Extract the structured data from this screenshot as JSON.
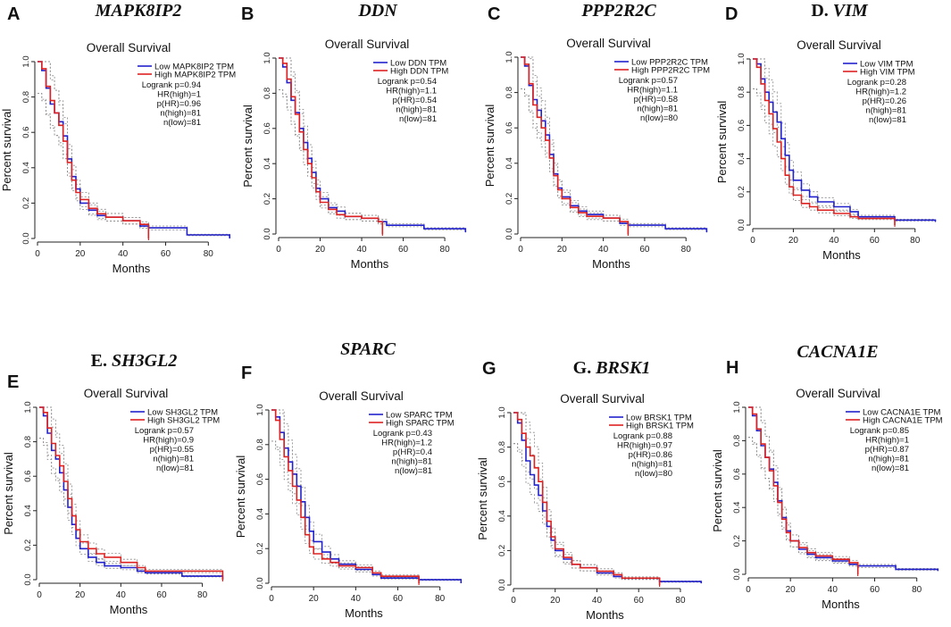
{
  "figure": {
    "plot_title": "Overall Survival",
    "xlabel": "Months",
    "ylabel": "Percent survival",
    "legend_position": "top-right",
    "colors": {
      "low": "#2222cc",
      "high": "#dd2222",
      "ci": "#888888",
      "axis": "#222222"
    }
  },
  "chart_data": [
    {
      "type": "line",
      "panel_label": "A",
      "gene_prefix": "",
      "gene": "MAPK8IP2",
      "title": "Overall Survival",
      "xlabel": "Months",
      "ylabel": "Percent survival",
      "xlim": [
        0,
        92
      ],
      "ylim": [
        0,
        1.0
      ],
      "xticks": [
        "0",
        "20",
        "40",
        "60",
        "80"
      ],
      "yticks": [
        "0.0",
        "0.2",
        "0.4",
        "0.6",
        "0.8",
        "1.0"
      ],
      "legend": [
        "Low MAPK8IP2 TPM",
        "High MAPK8IP2 TPM"
      ],
      "stats": [
        "Logrank p=0.94",
        "HR(high)=1",
        "p(HR)=0.96",
        "n(high)=81",
        "n(low)=81"
      ],
      "series": [
        {
          "name": "Low MAPK8IP2 TPM",
          "x": [
            0,
            2,
            4,
            6,
            8,
            10,
            12,
            14,
            16,
            18,
            20,
            24,
            28,
            32,
            40,
            48,
            52,
            70,
            90
          ],
          "y": [
            1,
            0.95,
            0.85,
            0.76,
            0.71,
            0.66,
            0.58,
            0.45,
            0.35,
            0.28,
            0.2,
            0.16,
            0.13,
            0.12,
            0.1,
            0.07,
            0.06,
            0.02,
            0
          ]
        },
        {
          "name": "High MAPK8IP2 TPM",
          "x": [
            0,
            2,
            4,
            6,
            8,
            10,
            12,
            14,
            16,
            18,
            20,
            24,
            28,
            32,
            40,
            48,
            52
          ],
          "y": [
            1,
            0.96,
            0.86,
            0.78,
            0.71,
            0.64,
            0.55,
            0.43,
            0.33,
            0.26,
            0.22,
            0.17,
            0.14,
            0.12,
            0.1,
            0.08,
            0
          ]
        }
      ]
    },
    {
      "type": "line",
      "panel_label": "B",
      "gene_prefix": "",
      "gene": "DDN",
      "title": "Overall Survival",
      "xlabel": "Months",
      "ylabel": "Percent survival",
      "xlim": [
        0,
        92
      ],
      "ylim": [
        0,
        1.0
      ],
      "xticks": [
        "0",
        "20",
        "40",
        "60",
        "80"
      ],
      "yticks": [
        "0.0",
        "0.2",
        "0.4",
        "0.6",
        "0.8",
        "1.0"
      ],
      "legend": [
        "Low DDN TPM",
        "High DDN TPM"
      ],
      "stats": [
        "Logrank p=0.54",
        "HR(high)=1.1",
        "p(HR)=0.54",
        "n(high)=81",
        "n(low)=81"
      ],
      "series": [
        {
          "name": "Low DDN TPM",
          "x": [
            0,
            2,
            4,
            6,
            8,
            10,
            12,
            14,
            16,
            18,
            20,
            24,
            28,
            32,
            40,
            48,
            52,
            70,
            90
          ],
          "y": [
            1,
            0.95,
            0.86,
            0.76,
            0.69,
            0.6,
            0.52,
            0.43,
            0.35,
            0.26,
            0.2,
            0.15,
            0.13,
            0.1,
            0.09,
            0.07,
            0.05,
            0.03,
            0.01
          ]
        },
        {
          "name": "High DDN TPM",
          "x": [
            0,
            2,
            4,
            6,
            8,
            10,
            12,
            14,
            16,
            18,
            20,
            24,
            28,
            32,
            40,
            48,
            50
          ],
          "y": [
            1,
            0.97,
            0.88,
            0.78,
            0.68,
            0.58,
            0.48,
            0.4,
            0.32,
            0.24,
            0.18,
            0.14,
            0.11,
            0.1,
            0.09,
            0.07,
            0
          ]
        }
      ]
    },
    {
      "type": "line",
      "panel_label": "C",
      "gene_prefix": "",
      "gene": "PPP2R2C",
      "title": "Overall Survival",
      "xlabel": "Months",
      "ylabel": "Percent survival",
      "xlim": [
        0,
        92
      ],
      "ylim": [
        0,
        1.0
      ],
      "xticks": [
        "0",
        "20",
        "40",
        "60",
        "80"
      ],
      "yticks": [
        "0.0",
        "0.2",
        "0.4",
        "0.6",
        "0.8",
        "1.0"
      ],
      "legend": [
        "Low PPP2R2C TPM",
        "High PPP2R2C TPM"
      ],
      "stats": [
        "Logrank p=0.57",
        "HR(high)=1.1",
        "p(HR)=0.58",
        "n(high)=81",
        "n(low)=80"
      ],
      "series": [
        {
          "name": "Low PPP2R2C TPM",
          "x": [
            0,
            2,
            4,
            6,
            8,
            10,
            12,
            14,
            16,
            18,
            20,
            24,
            28,
            32,
            40,
            48,
            52,
            70,
            90
          ],
          "y": [
            1,
            0.95,
            0.84,
            0.76,
            0.7,
            0.64,
            0.56,
            0.45,
            0.34,
            0.26,
            0.21,
            0.16,
            0.13,
            0.11,
            0.09,
            0.06,
            0.05,
            0.03,
            0.01
          ]
        },
        {
          "name": "High PPP2R2C TPM",
          "x": [
            0,
            2,
            4,
            6,
            8,
            10,
            12,
            14,
            16,
            18,
            20,
            24,
            28,
            32,
            40,
            48,
            52
          ],
          "y": [
            1,
            0.96,
            0.85,
            0.73,
            0.66,
            0.6,
            0.53,
            0.43,
            0.33,
            0.25,
            0.2,
            0.15,
            0.12,
            0.1,
            0.09,
            0.07,
            0
          ]
        }
      ]
    },
    {
      "type": "line",
      "panel_label": "D",
      "gene_prefix": "D. ",
      "gene": "VIM",
      "title": "Overall Survival",
      "xlabel": "Months",
      "ylabel": "Percent survival",
      "xlim": [
        0,
        92
      ],
      "ylim": [
        0,
        1.0
      ],
      "xticks": [
        "0",
        "20",
        "40",
        "60",
        "80"
      ],
      "yticks": [
        "0.0",
        "0.2",
        "0.4",
        "0.6",
        "0.8",
        "1.0"
      ],
      "legend": [
        "Low VIM TPM",
        "High VIM TPM"
      ],
      "stats": [
        "Logrank p=0.28",
        "HR(high)=1.2",
        "p(HR)=0.26",
        "n(high)=81",
        "n(low)=81"
      ],
      "series": [
        {
          "name": "Low VIM TPM",
          "x": [
            0,
            2,
            4,
            6,
            8,
            10,
            12,
            14,
            16,
            18,
            20,
            24,
            28,
            32,
            40,
            48,
            52,
            70,
            90
          ],
          "y": [
            1,
            0.97,
            0.88,
            0.8,
            0.74,
            0.68,
            0.62,
            0.52,
            0.42,
            0.33,
            0.27,
            0.21,
            0.17,
            0.14,
            0.11,
            0.08,
            0.05,
            0.03,
            0.02
          ]
        },
        {
          "name": "High VIM TPM",
          "x": [
            0,
            2,
            4,
            6,
            8,
            10,
            12,
            14,
            16,
            18,
            20,
            24,
            28,
            32,
            40,
            48,
            52,
            70
          ],
          "y": [
            1,
            0.95,
            0.85,
            0.75,
            0.67,
            0.58,
            0.5,
            0.4,
            0.3,
            0.23,
            0.18,
            0.13,
            0.11,
            0.09,
            0.07,
            0.05,
            0.04,
            0
          ]
        }
      ]
    },
    {
      "type": "line",
      "panel_label": "E",
      "gene_prefix": "E. ",
      "gene": "SH3GL2",
      "title": "Overall Survival",
      "xlabel": "Months",
      "ylabel": "Percent survival",
      "xlim": [
        0,
        92
      ],
      "ylim": [
        0,
        1.0
      ],
      "xticks": [
        "0",
        "20",
        "40",
        "60",
        "80"
      ],
      "yticks": [
        "0.0",
        "0.2",
        "0.4",
        "0.6",
        "0.8",
        "1.0"
      ],
      "legend": [
        "Low SH3GL2 TPM",
        "High SH3GL2 TPM"
      ],
      "stats": [
        "Logrank p=0.57",
        "HR(high)=0.9",
        "p(HR)=0.55",
        "n(high)=81",
        "n(low)=81"
      ],
      "series": [
        {
          "name": "Low SH3GL2 TPM",
          "x": [
            0,
            2,
            4,
            6,
            8,
            10,
            12,
            14,
            16,
            18,
            20,
            24,
            28,
            32,
            40,
            48,
            52,
            70,
            90
          ],
          "y": [
            1,
            0.95,
            0.85,
            0.75,
            0.7,
            0.62,
            0.52,
            0.42,
            0.32,
            0.24,
            0.18,
            0.13,
            0.1,
            0.08,
            0.07,
            0.05,
            0.04,
            0.02,
            0
          ]
        },
        {
          "name": "High SH3GL2 TPM",
          "x": [
            0,
            2,
            4,
            6,
            8,
            10,
            12,
            14,
            16,
            18,
            20,
            24,
            28,
            32,
            40,
            48,
            52,
            90
          ],
          "y": [
            1,
            0.97,
            0.88,
            0.79,
            0.72,
            0.66,
            0.57,
            0.47,
            0.37,
            0.29,
            0.22,
            0.18,
            0.15,
            0.13,
            0.1,
            0.07,
            0.05,
            0
          ]
        }
      ]
    },
    {
      "type": "line",
      "panel_label": "F",
      "gene_prefix": "",
      "gene": "SPARC",
      "title": "Overall Survival",
      "xlabel": "Months",
      "ylabel": "Percent survival",
      "xlim": [
        0,
        92
      ],
      "ylim": [
        0,
        1.0
      ],
      "xticks": [
        "0",
        "20",
        "40",
        "60",
        "80"
      ],
      "yticks": [
        "0.0",
        "0.2",
        "0.4",
        "0.6",
        "0.8",
        "1.0"
      ],
      "legend": [
        "Low SPARC TPM",
        "High SPARC TPM"
      ],
      "stats": [
        "Logrank p=0.43",
        "HR(high)=1.2",
        "p(HR)=0.4",
        "n(high)=81",
        "n(low)=81"
      ],
      "series": [
        {
          "name": "Low SPARC TPM",
          "x": [
            0,
            2,
            4,
            6,
            8,
            10,
            12,
            14,
            16,
            18,
            20,
            24,
            28,
            32,
            40,
            48,
            52,
            70,
            90
          ],
          "y": [
            1,
            0.96,
            0.87,
            0.78,
            0.7,
            0.63,
            0.56,
            0.47,
            0.38,
            0.3,
            0.24,
            0.18,
            0.14,
            0.11,
            0.08,
            0.05,
            0.03,
            0.02,
            0
          ]
        },
        {
          "name": "High SPARC TPM",
          "x": [
            0,
            2,
            4,
            6,
            8,
            10,
            12,
            14,
            16,
            18,
            20,
            24,
            28,
            32,
            40,
            48,
            52,
            70
          ],
          "y": [
            1,
            0.94,
            0.83,
            0.73,
            0.65,
            0.56,
            0.48,
            0.38,
            0.28,
            0.21,
            0.17,
            0.14,
            0.12,
            0.1,
            0.09,
            0.06,
            0.04,
            0
          ]
        }
      ]
    },
    {
      "type": "line",
      "panel_label": "G",
      "gene_prefix": "G. ",
      "gene": "BRSK1",
      "title": "Overall Survival",
      "xlabel": "Months",
      "ylabel": "Percent survival",
      "xlim": [
        0,
        92
      ],
      "ylim": [
        0,
        1.0
      ],
      "xticks": [
        "0",
        "20",
        "40",
        "60",
        "80"
      ],
      "yticks": [
        "0.0",
        "0.2",
        "0.4",
        "0.6",
        "0.8",
        "1.0"
      ],
      "legend": [
        "Low BRSK1 TPM",
        "High BRSK1 TPM"
      ],
      "stats": [
        "Logrank p=0.88",
        "HR(high)=0.97",
        "p(HR)=0.86",
        "n(high)=81",
        "n(low)=80"
      ],
      "series": [
        {
          "name": "Low BRSK1 TPM",
          "x": [
            0,
            2,
            4,
            6,
            8,
            10,
            12,
            14,
            16,
            18,
            20,
            24,
            28,
            32,
            40,
            48,
            52,
            70,
            90
          ],
          "y": [
            1,
            0.94,
            0.84,
            0.72,
            0.64,
            0.58,
            0.52,
            0.43,
            0.34,
            0.26,
            0.2,
            0.15,
            0.12,
            0.1,
            0.07,
            0.05,
            0.04,
            0.02,
            0.01
          ]
        },
        {
          "name": "High BRSK1 TPM",
          "x": [
            0,
            2,
            4,
            6,
            8,
            10,
            12,
            14,
            16,
            18,
            20,
            24,
            28,
            32,
            40,
            48,
            52,
            70
          ],
          "y": [
            1,
            0.96,
            0.88,
            0.8,
            0.75,
            0.68,
            0.6,
            0.48,
            0.37,
            0.28,
            0.21,
            0.16,
            0.12,
            0.1,
            0.08,
            0.06,
            0.04,
            0
          ]
        }
      ]
    },
    {
      "type": "line",
      "panel_label": "H",
      "gene_prefix": "",
      "gene": "CACNA1E",
      "title": "Overall Survival",
      "xlabel": "Months",
      "ylabel": "Percent survival",
      "xlim": [
        0,
        92
      ],
      "ylim": [
        0,
        1.0
      ],
      "xticks": [
        "0",
        "20",
        "40",
        "60",
        "80"
      ],
      "yticks": [
        "0.0",
        "0.2",
        "0.4",
        "0.6",
        "0.8",
        "1.0"
      ],
      "legend": [
        "Low CACNA1E TPM",
        "High CACNA1E TPM"
      ],
      "stats": [
        "Logrank p=0.85",
        "HR(high)=1",
        "p(HR)=0.87",
        "n(high)=81",
        "n(low)=81"
      ],
      "series": [
        {
          "name": "Low CACNA1E TPM",
          "x": [
            0,
            2,
            4,
            6,
            8,
            10,
            12,
            14,
            16,
            18,
            20,
            24,
            28,
            32,
            40,
            48,
            52,
            70,
            90
          ],
          "y": [
            1,
            0.95,
            0.86,
            0.77,
            0.7,
            0.63,
            0.55,
            0.44,
            0.34,
            0.26,
            0.2,
            0.15,
            0.12,
            0.1,
            0.08,
            0.06,
            0.05,
            0.03,
            0.02
          ]
        },
        {
          "name": "High CACNA1E TPM",
          "x": [
            0,
            2,
            4,
            6,
            8,
            10,
            12,
            14,
            16,
            18,
            20,
            24,
            28,
            32,
            40,
            48,
            52
          ],
          "y": [
            1,
            0.96,
            0.87,
            0.78,
            0.7,
            0.62,
            0.53,
            0.43,
            0.33,
            0.25,
            0.2,
            0.16,
            0.13,
            0.11,
            0.09,
            0.07,
            0
          ]
        }
      ]
    }
  ]
}
